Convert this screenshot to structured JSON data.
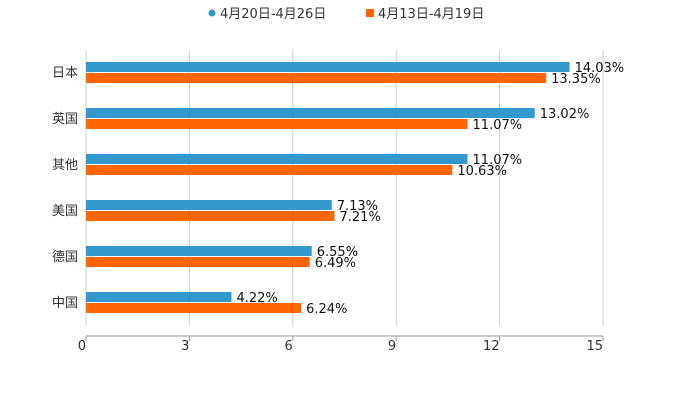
{
  "chart_data": {
    "type": "bar",
    "orientation": "horizontal",
    "title": "",
    "xlabel": "",
    "ylabel": "",
    "categories": [
      "日本",
      "英国",
      "其他",
      "美国",
      "德国",
      "中国"
    ],
    "series": [
      {
        "name": "4月20日-4月26日",
        "color": "#3399cc",
        "values": [
          14.03,
          13.02,
          11.07,
          7.13,
          6.55,
          4.22
        ],
        "labels": [
          "14.03%",
          "13.02%",
          "11.07%",
          "7.13%",
          "6.55%",
          "4.22%"
        ]
      },
      {
        "name": "4月13日-4月19日",
        "color": "#ff6600",
        "values": [
          13.35,
          11.07,
          10.63,
          7.21,
          6.49,
          6.24
        ],
        "labels": [
          "13.35%",
          "11.07%",
          "10.63%",
          "7.21%",
          "6.49%",
          "6.24%"
        ]
      }
    ],
    "xlim": [
      0,
      15
    ],
    "xticks": [
      "0",
      "3",
      "6",
      "9",
      "12",
      "15"
    ],
    "grid": true,
    "legend_position": "top-center"
  }
}
